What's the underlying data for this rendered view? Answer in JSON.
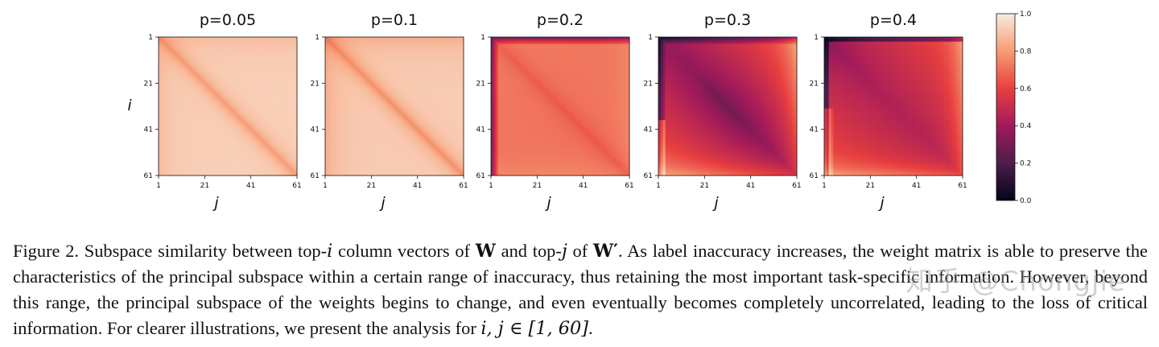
{
  "chart_data": {
    "type": "heatmap",
    "panels": [
      {
        "title": "p=0.05",
        "p": 0.05
      },
      {
        "title": "p=0.1",
        "p": 0.1
      },
      {
        "title": "p=0.2",
        "p": 0.2
      },
      {
        "title": "p=0.3",
        "p": 0.3
      },
      {
        "title": "p=0.4",
        "p": 0.4
      }
    ],
    "xlabel": "j",
    "ylabel": "i",
    "xticks": [
      "1",
      "21",
      "41",
      "61"
    ],
    "yticks": [
      "1",
      "21",
      "41",
      "61"
    ],
    "colorbar": {
      "ticks": [
        "0.0",
        "0.2",
        "0.4",
        "0.6",
        "0.8",
        "1.0"
      ],
      "range": [
        0.0,
        1.0
      ],
      "colormap": "rocket",
      "colors": [
        "#03051a",
        "#4c1d4b",
        "#a11a5b",
        "#e83f3f",
        "#f69c73",
        "#faebdd"
      ]
    }
  },
  "caption": {
    "label": "Figure 2.",
    "t1": " Subspace similarity between top-",
    "i": "i",
    "t2": " column vectors of ",
    "W": "W",
    "t3": " and top-",
    "j": "j",
    "t4": " of ",
    "Wp": "W′",
    "t5": ". As label inaccuracy increases, the weight matrix is able to preserve the characteristics of the principal subspace within a certain range of inaccuracy, thus retaining the most important task-specific information. However, beyond this range, the principal subspace of the weights begins to change, and even eventually becomes completely uncorrelated, leading to the loss of critical information. For clearer illustrations, we present the analysis for ",
    "range": "i, j ∈ [1, 60]",
    "t6": "."
  },
  "watermark": "知乎 @Chongjie"
}
